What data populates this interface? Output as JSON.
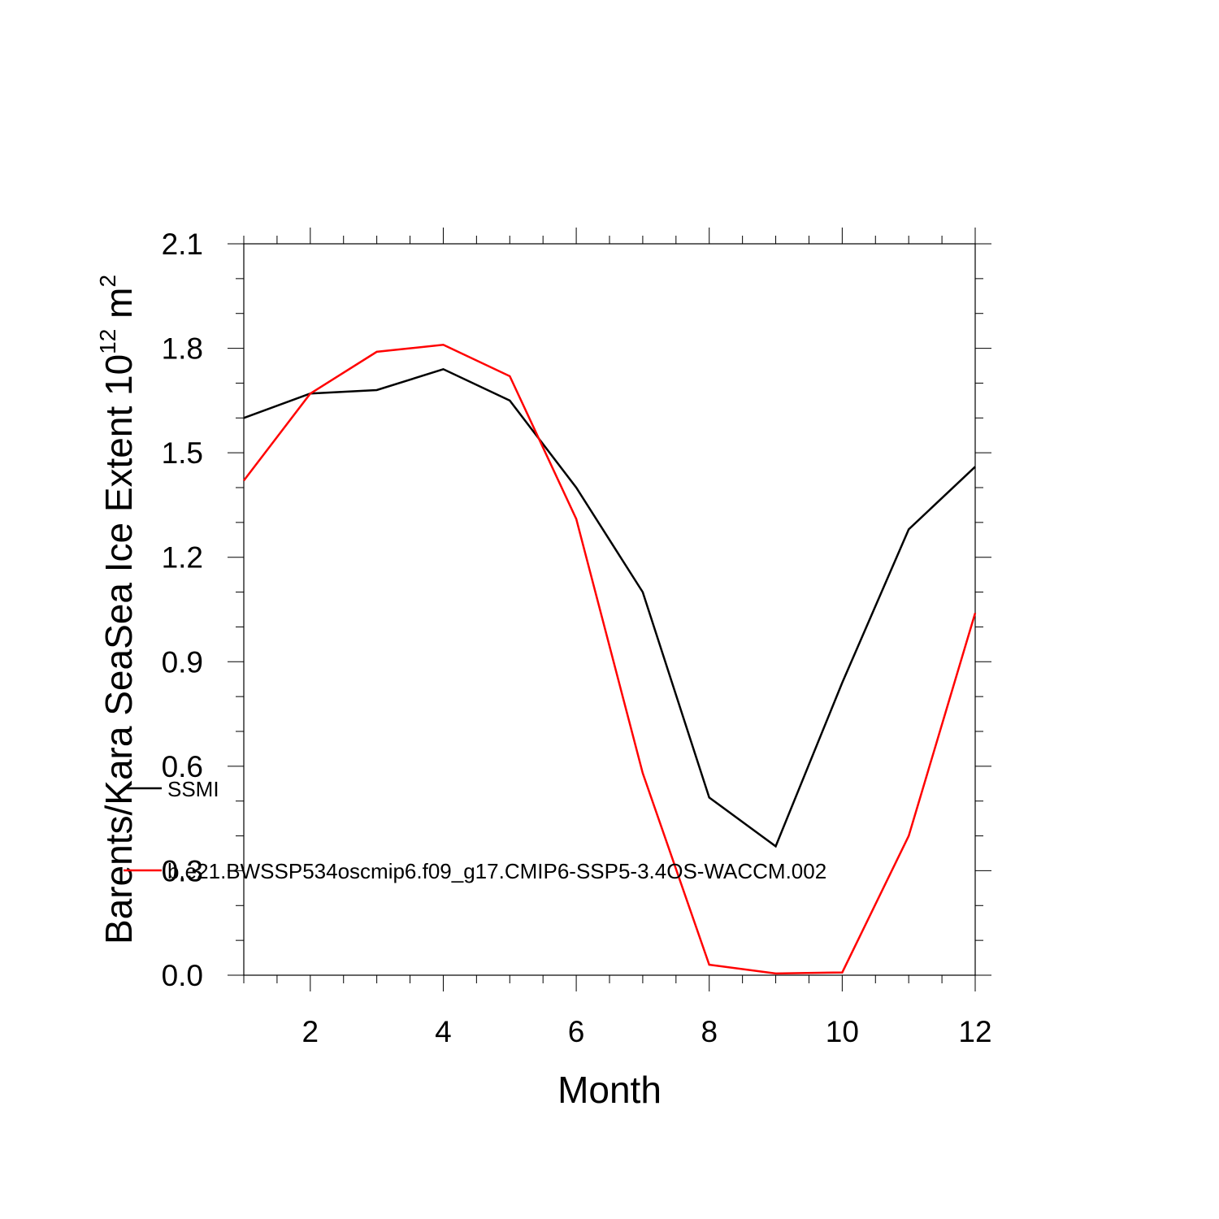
{
  "chart_data": {
    "type": "line",
    "title": "",
    "xlabel": "Month",
    "ylabel_parts": {
      "main": "Barents/Kara SeaSea Ice Extent 10",
      "exp1": "12",
      "unit": " m",
      "exp2": "2"
    },
    "xlim": [
      1,
      12
    ],
    "ylim": [
      0.0,
      2.1
    ],
    "x_ticks": [
      2,
      4,
      6,
      8,
      10,
      12
    ],
    "x_tick_labels": [
      "2",
      "4",
      "6",
      "8",
      "10",
      "12"
    ],
    "y_ticks": [
      0.0,
      0.3,
      0.6,
      0.9,
      1.2,
      1.5,
      1.8,
      2.1
    ],
    "y_tick_labels": [
      "0.0",
      "0.3",
      "0.6",
      "0.9",
      "1.2",
      "1.5",
      "1.8",
      "2.1"
    ],
    "x": [
      1,
      2,
      3,
      4,
      5,
      6,
      7,
      8,
      9,
      10,
      11,
      12
    ],
    "series": [
      {
        "name": "SSMI",
        "color": "#000000",
        "values": [
          1.6,
          1.67,
          1.68,
          1.74,
          1.65,
          1.4,
          1.1,
          0.51,
          0.37,
          0.84,
          1.28,
          1.46
        ]
      },
      {
        "name": "b.e21.BWSSP534oscmip6.f09_g17.CMIP6-SSP5-3.4OS-WACCM.002",
        "color": "#ff0000",
        "values": [
          1.42,
          1.67,
          1.79,
          1.81,
          1.72,
          1.31,
          0.58,
          0.03,
          0.005,
          0.008,
          0.4,
          1.04
        ]
      }
    ],
    "grid": false,
    "legend_position": "inside-left"
  }
}
